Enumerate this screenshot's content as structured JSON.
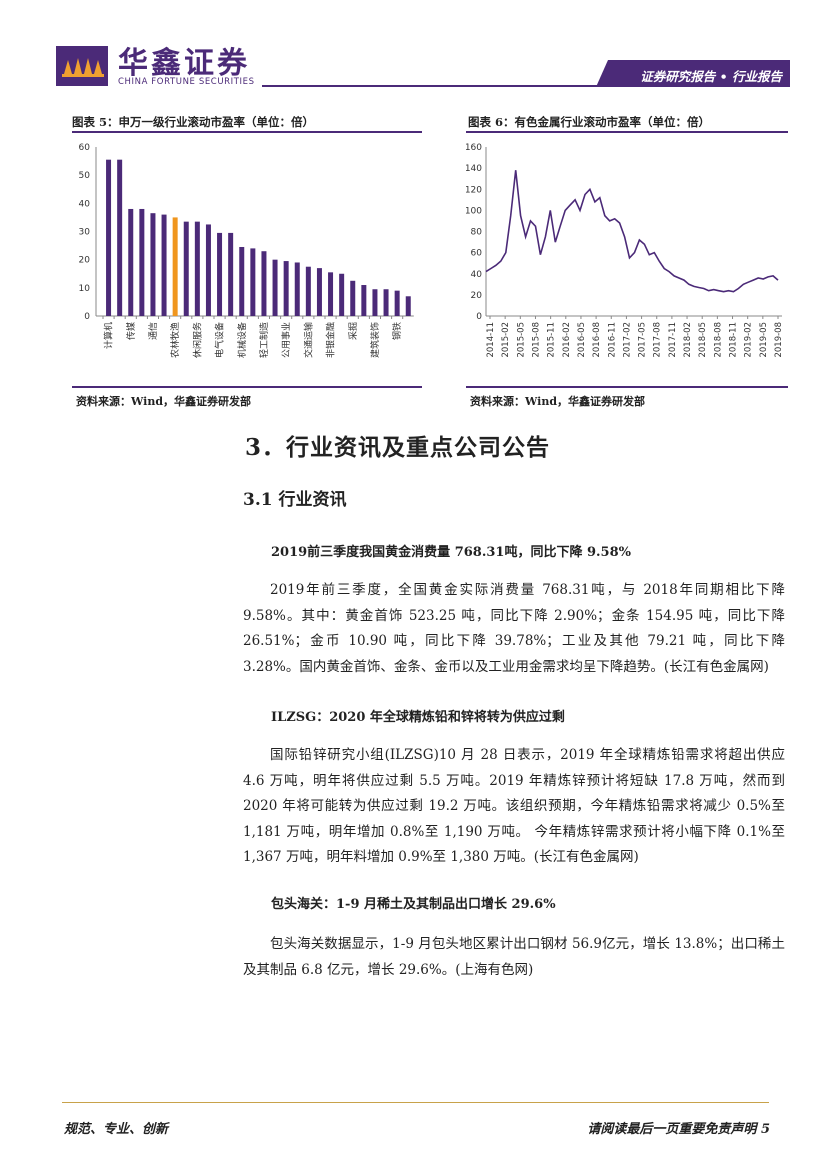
{
  "header": {
    "logo_cn": "华鑫证券",
    "logo_en": "CHINA FORTUNE SECURITIES",
    "banner": "证券研究报告 • 行业报告"
  },
  "figure5": {
    "title": "图表 5：申万一级行业滚动市盈率（单位：倍）",
    "source": "资料来源：Wind，华鑫证券研发部"
  },
  "figure6": {
    "title": "图表 6：有色金属行业滚动市盈率（单位：倍）",
    "source": "资料来源：Wind，华鑫证券研发部"
  },
  "chart_data": [
    {
      "type": "bar",
      "ylim": [
        0,
        60
      ],
      "yticks": [
        0,
        10,
        20,
        30,
        40,
        50,
        60
      ],
      "highlight_index": 6,
      "colors": {
        "bar": "#4b2a78",
        "highlight": "#f0961e"
      },
      "categories": [
        "计算机",
        "",
        "传媒",
        "",
        "通信",
        "",
        "农林牧渔",
        "",
        "休闲服务",
        "",
        "电气设备",
        "",
        "机械设备",
        "",
        "轻工制造",
        "",
        "公用事业",
        "",
        "交通运输",
        "",
        "非银金融",
        "",
        "采掘",
        "",
        "建筑装饰",
        "",
        "钢铁",
        ""
      ],
      "values": [
        55.5,
        55.5,
        38,
        38,
        36.5,
        36,
        35,
        33.5,
        33.5,
        32.5,
        29.5,
        29.5,
        24.5,
        24,
        23,
        20,
        19.5,
        19,
        17.5,
        17,
        15.5,
        15,
        12.5,
        11,
        9.5,
        9.5,
        9,
        7
      ]
    },
    {
      "type": "line",
      "ylim": [
        0,
        160
      ],
      "yticks": [
        0,
        20,
        40,
        60,
        80,
        100,
        120,
        140,
        160
      ],
      "color": "#4b2a78",
      "x_labels": [
        "2014-11",
        "2015-02",
        "2015-05",
        "2015-08",
        "2015-11",
        "2016-02",
        "2016-05",
        "2016-08",
        "2016-11",
        "2017-02",
        "2017-05",
        "2017-08",
        "2017-11",
        "2018-02",
        "2018-05",
        "2018-08",
        "2018-11",
        "2019-02",
        "2019-05",
        "2019-08"
      ],
      "x": [
        "2014-11",
        "2014-12",
        "2015-01",
        "2015-02",
        "2015-03",
        "2015-04",
        "2015-05",
        "2015-06",
        "2015-07",
        "2015-08",
        "2015-09",
        "2015-10",
        "2015-11",
        "2015-12",
        "2016-01",
        "2016-02",
        "2016-03",
        "2016-04",
        "2016-05",
        "2016-06",
        "2016-07",
        "2016-08",
        "2016-09",
        "2016-10",
        "2016-11",
        "2016-12",
        "2017-01",
        "2017-02",
        "2017-03",
        "2017-04",
        "2017-05",
        "2017-06",
        "2017-07",
        "2017-08",
        "2017-09",
        "2017-10",
        "2017-11",
        "2017-12",
        "2018-01",
        "2018-02",
        "2018-03",
        "2018-04",
        "2018-05",
        "2018-06",
        "2018-07",
        "2018-08",
        "2018-09",
        "2018-10",
        "2018-11",
        "2018-12",
        "2019-01",
        "2019-02",
        "2019-03",
        "2019-04",
        "2019-05",
        "2019-06",
        "2019-07",
        "2019-08",
        "2019-09",
        "2019-10"
      ],
      "values": [
        42,
        45,
        48,
        52,
        60,
        95,
        138,
        95,
        75,
        90,
        85,
        58,
        75,
        100,
        70,
        85,
        100,
        105,
        110,
        100,
        115,
        120,
        108,
        112,
        95,
        90,
        92,
        88,
        75,
        55,
        60,
        72,
        68,
        58,
        60,
        52,
        45,
        42,
        38,
        36,
        34,
        30,
        28,
        27,
        26,
        24,
        25,
        24,
        23,
        24,
        23,
        26,
        30,
        32,
        34,
        36,
        35,
        37,
        38,
        34
      ]
    }
  ],
  "section": {
    "h1": "3．行业资讯及重点公司公告",
    "h2": "3.1  行业资讯"
  },
  "news": [
    {
      "title": "2019前三季度我国黄金消费量 768.31吨，同比下降 9.58%",
      "body": "2019年前三季度，全国黄金实际消费量 768.31吨，与 2018年同期相比下降 9.58%。其中：黄金首饰 523.25 吨，同比下降 2.90%；金条 154.95 吨，同比下降 26.51%；金币 10.90 吨，同比下降 39.78%；工业及其他 79.21 吨，同比下降 3.28%。国内黄金首饰、金条、金币以及工业用金需求均呈下降趋势。(长江有色金属网)"
    },
    {
      "title": "ILZSG：2020 年全球精炼铅和锌将转为供应过剩",
      "body": "国际铅锌研究小组(ILZSG)10 月 28 日表示，2019 年全球精炼铅需求将超出供应 4.6 万吨，明年将供应过剩 5.5 万吨。2019 年精炼锌预计将短缺 17.8 万吨，然而到 2020 年将可能转为供应过剩 19.2 万吨。该组织预期，今年精炼铅需求将减少 0.5%至 1,181 万吨，明年增加 0.8%至 1,190 万吨。  今年精炼锌需求预计将小幅下降 0.1%至 1,367 万吨，明年料增加 0.9%至 1,380 万吨。(长江有色金属网)"
    },
    {
      "title": "包头海关：1-9 月稀土及其制品出口增长 29.6%",
      "body": "包头海关数据显示，1-9 月包头地区累计出口钢材 56.9亿元，增长 13.8%；出口稀土及其制品 6.8 亿元，增长 29.6%。(上海有色网)"
    }
  ],
  "footer": {
    "left": "规范、专业、创新",
    "right": "请阅读最后一页重要免责声明 5"
  }
}
